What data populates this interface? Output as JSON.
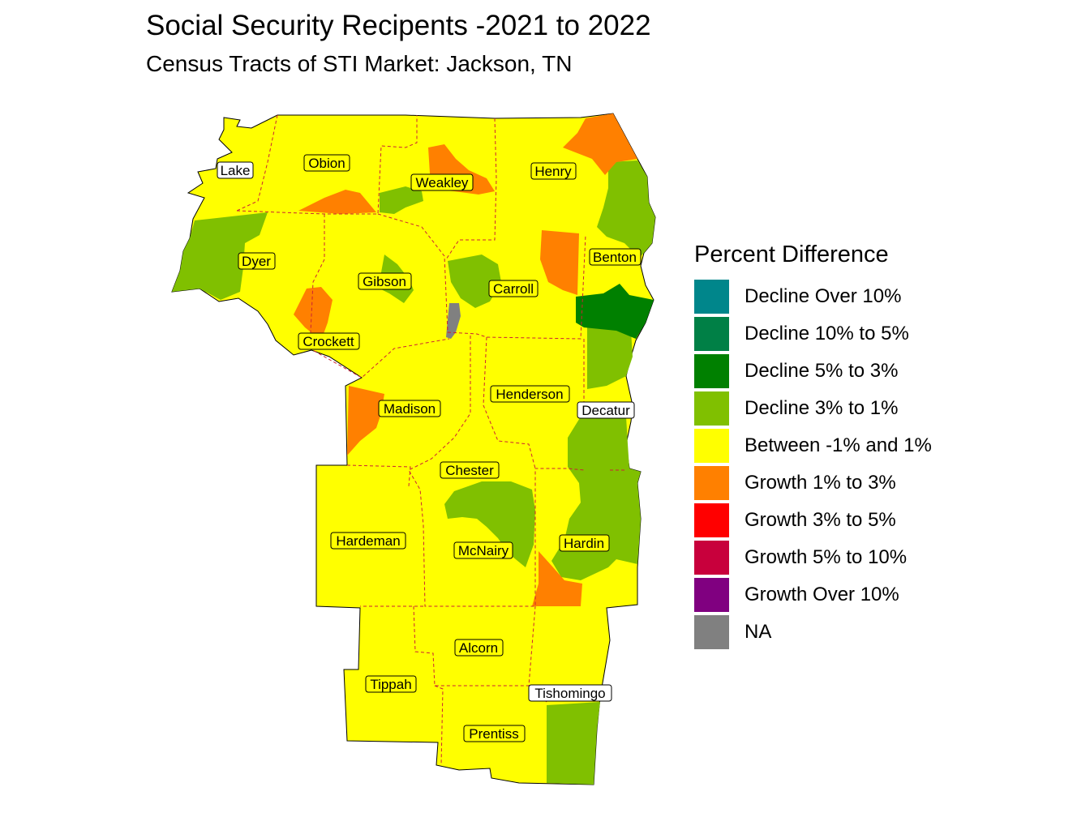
{
  "title": "Social Security Recipents -2021 to 2022",
  "subtitle": "Census Tracts of STI Market: Jackson, TN",
  "legend": {
    "title": "Percent Difference",
    "items": [
      {
        "label": "Decline Over 10%",
        "color": "#00868B"
      },
      {
        "label": "Decline 10% to 5%",
        "color": "#008046"
      },
      {
        "label": "Decline 5% to 3%",
        "color": "#008000"
      },
      {
        "label": "Decline 3% to 1%",
        "color": "#80C000"
      },
      {
        "label": "Between -1% and 1%",
        "color": "#FFFF00"
      },
      {
        "label": "Growth 1% to 3%",
        "color": "#FF8000"
      },
      {
        "label": "Growth 3% to 5%",
        "color": "#FF0000"
      },
      {
        "label": "Growth 5% to 10%",
        "color": "#C8003C"
      },
      {
        "label": "Growth Over 10%",
        "color": "#800080"
      },
      {
        "label": "NA",
        "color": "#808080"
      }
    ]
  },
  "counties": [
    {
      "name": "Lake"
    },
    {
      "name": "Obion"
    },
    {
      "name": "Weakley"
    },
    {
      "name": "Henry"
    },
    {
      "name": "Dyer"
    },
    {
      "name": "Gibson"
    },
    {
      "name": "Carroll"
    },
    {
      "name": "Benton"
    },
    {
      "name": "Crockett"
    },
    {
      "name": "Madison"
    },
    {
      "name": "Henderson"
    },
    {
      "name": "Decatur"
    },
    {
      "name": "Chester"
    },
    {
      "name": "Hardeman"
    },
    {
      "name": "McNairy"
    },
    {
      "name": "Hardin"
    },
    {
      "name": "Alcorn"
    },
    {
      "name": "Tippah"
    },
    {
      "name": "Tishomingo"
    },
    {
      "name": "Prentiss"
    }
  ]
}
